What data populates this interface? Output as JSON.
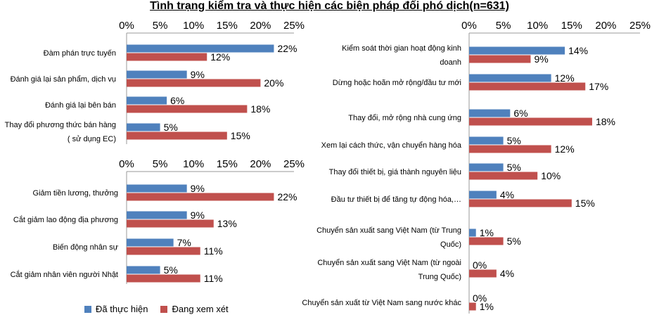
{
  "title": "Tình trạng kiểm tra và thực hiện các biện pháp đối phó dịch(n=631)",
  "legend": {
    "done": "Đã thực hiện",
    "considering": "Đang xem xét"
  },
  "colors": {
    "done": "#4F81BD",
    "considering": "#C0504D"
  },
  "chart_data": [
    {
      "type": "bar",
      "orientation": "horizontal",
      "xlim": [
        0,
        25
      ],
      "xticks": [
        "0%",
        "5%",
        "10%",
        "15%",
        "20%",
        "25%"
      ],
      "categories": [
        [
          "Đàm phán trực tuyến"
        ],
        [
          "Đánh giá lại sản phẩm, dịch vụ"
        ],
        [
          "Đánh giá lại bên bán"
        ],
        [
          "Thay đổi phương thức bán hàng",
          "( sử dụng EC)"
        ]
      ],
      "series": [
        {
          "name": "Đã thực hiện",
          "values": [
            22,
            9,
            6,
            5
          ],
          "labels": [
            "22%",
            "9%",
            "6%",
            "5%"
          ]
        },
        {
          "name": "Đang xem xét",
          "values": [
            12,
            20,
            18,
            15
          ],
          "labels": [
            "12%",
            "20%",
            "18%",
            "15%"
          ]
        }
      ]
    },
    {
      "type": "bar",
      "orientation": "horizontal",
      "xlim": [
        0,
        25
      ],
      "xticks": [
        "0%",
        "5%",
        "10%",
        "15%",
        "20%",
        "25%"
      ],
      "categories": [
        [
          "Giảm tiền lương, thưởng"
        ],
        [
          "Cắt giảm lao động địa phương"
        ],
        [
          "Biến động nhân sự"
        ],
        [
          "Cắt giảm nhân viên người Nhật"
        ]
      ],
      "series": [
        {
          "name": "Đã thực hiện",
          "values": [
            9,
            9,
            7,
            5
          ],
          "labels": [
            "9%",
            "9%",
            "7%",
            "5%"
          ]
        },
        {
          "name": "Đang xem xét",
          "values": [
            22,
            13,
            11,
            11
          ],
          "labels": [
            "22%",
            "13%",
            "11%",
            "11%"
          ]
        }
      ]
    },
    {
      "type": "bar",
      "orientation": "horizontal",
      "xlim": [
        0,
        25
      ],
      "xticks": [
        "0%",
        "5%",
        "10%",
        "15%",
        "20%",
        "25%"
      ],
      "categories": [
        [
          "Kiểm soát thời gian hoạt động kinh",
          "doanh"
        ],
        [
          "Dừng hoặc hoãn mở rộng/đầu tư mới"
        ],
        [
          "Thay đổi, mở rộng nhà cung ứng"
        ],
        [
          "Xem lại cách thức, vận chuyển hàng hóa"
        ],
        [
          "Thay đổi thiết bị, giá thành nguyên liệu"
        ],
        [
          "Đầu tư thiết bị để tăng tự động hóa,…"
        ],
        [
          "Chuyển sản xuất sang Việt Nam (từ Trung",
          "Quốc)"
        ],
        [
          "Chuyển sản xuất sang Việt Nam (từ ngoài",
          "Trung Quốc)"
        ],
        [
          "Chuyển sản xuất từ Việt Nam sang nước khác"
        ]
      ],
      "series": [
        {
          "name": "Đã thực hiện",
          "values": [
            14,
            12,
            6,
            5,
            5,
            4,
            1,
            0,
            0
          ],
          "labels": [
            "14%",
            "12%",
            "6%",
            "5%",
            "5%",
            "4%",
            "1%",
            "0%",
            "0%"
          ]
        },
        {
          "name": "Đang xem xét",
          "values": [
            9,
            17,
            18,
            12,
            10,
            15,
            5,
            4,
            1
          ],
          "labels": [
            "9%",
            "17%",
            "18%",
            "12%",
            "10%",
            "15%",
            "5%",
            "4%",
            "1%"
          ]
        }
      ]
    }
  ]
}
